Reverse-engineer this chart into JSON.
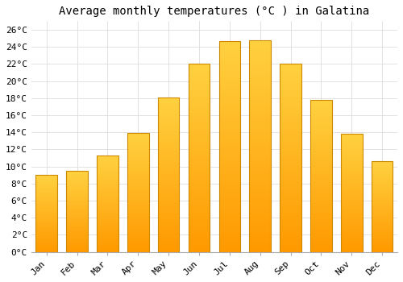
{
  "title": "Average monthly temperatures (°C ) in Galatina",
  "months": [
    "Jan",
    "Feb",
    "Mar",
    "Apr",
    "May",
    "Jun",
    "Jul",
    "Aug",
    "Sep",
    "Oct",
    "Nov",
    "Dec"
  ],
  "values": [
    9.0,
    9.5,
    11.3,
    13.9,
    18.1,
    22.0,
    24.7,
    24.8,
    22.0,
    17.8,
    13.8,
    10.6
  ],
  "bar_color_top": "#FFD040",
  "bar_color_bottom": "#FF9900",
  "bar_edge_color": "#CC8800",
  "background_color": "#FFFFFF",
  "grid_color": "#DDDDDD",
  "ylim": [
    0,
    27
  ],
  "yticks": [
    0,
    2,
    4,
    6,
    8,
    10,
    12,
    14,
    16,
    18,
    20,
    22,
    24,
    26
  ],
  "title_fontsize": 10,
  "tick_fontsize": 8,
  "font_family": "monospace"
}
